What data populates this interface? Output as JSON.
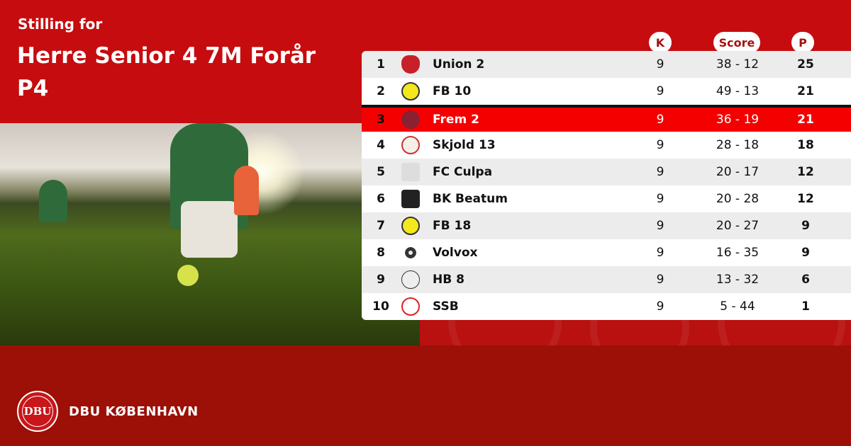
{
  "header": {
    "subtitle": "Stilling for",
    "title": "Herre Senior 4 7M Forår P4"
  },
  "columns": {
    "k": "K",
    "score": "Score",
    "p": "P"
  },
  "colors": {
    "primary_red": "#c60c0f",
    "highlight_red": "#f50000",
    "footer_red": "#9c1007"
  },
  "standings": [
    {
      "pos": "1",
      "team": "Union 2",
      "k": "9",
      "score": "38 - 12",
      "p": "25",
      "logo": "union-crest"
    },
    {
      "pos": "2",
      "team": "FB 10",
      "k": "9",
      "score": "49 - 13",
      "p": "21",
      "logo": "fb-crest"
    },
    {
      "pos": "3",
      "team": "Frem 2",
      "k": "9",
      "score": "36 - 19",
      "p": "21",
      "logo": "frem-crest",
      "highlighted": true
    },
    {
      "pos": "4",
      "team": "Skjold 13",
      "k": "9",
      "score": "28 - 18",
      "p": "18",
      "logo": "skjold-crest"
    },
    {
      "pos": "5",
      "team": "FC Culpa",
      "k": "9",
      "score": "20 - 17",
      "p": "12",
      "logo": "culpa-crest"
    },
    {
      "pos": "6",
      "team": "BK Beatum",
      "k": "9",
      "score": "20 - 28",
      "p": "12",
      "logo": "beatum-crest"
    },
    {
      "pos": "7",
      "team": "FB 18",
      "k": "9",
      "score": "20 - 27",
      "p": "9",
      "logo": "fb-crest"
    },
    {
      "pos": "8",
      "team": "Volvox",
      "k": "9",
      "score": "16 - 35",
      "p": "9",
      "logo": "volvox-crest"
    },
    {
      "pos": "9",
      "team": "HB 8",
      "k": "9",
      "score": "13 - 32",
      "p": "6",
      "logo": "hb-crest"
    },
    {
      "pos": "10",
      "team": "SSB",
      "k": "9",
      "score": "5 - 44",
      "p": "1",
      "logo": "ssb-crest"
    }
  ],
  "footer": {
    "brand": "DBU KØBENHAVN",
    "seal_text": "DBU"
  }
}
